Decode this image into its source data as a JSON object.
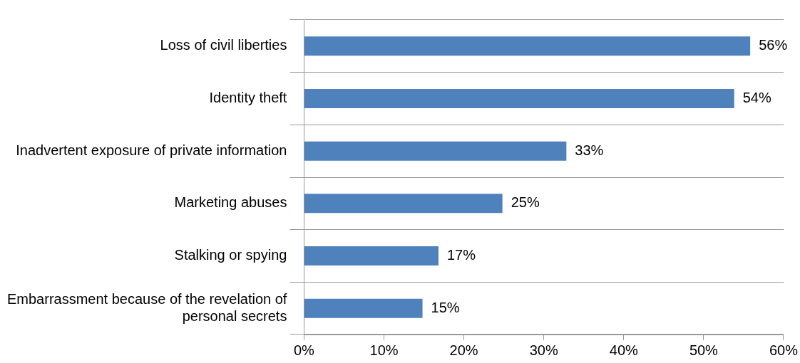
{
  "chart_data": {
    "type": "bar",
    "orientation": "horizontal",
    "categories": [
      "Loss of civil liberties",
      "Identity theft",
      "Inadvertent exposure of private information",
      "Marketing abuses",
      "Stalking or spying",
      "Embarrassment because of the revelation of personal secrets"
    ],
    "values": [
      56,
      54,
      33,
      25,
      17,
      15
    ],
    "value_labels": [
      "56%",
      "54%",
      "33%",
      "25%",
      "17%",
      "15%"
    ],
    "color": "#4f81bd",
    "xlim": [
      0,
      60
    ],
    "xticks": [
      {
        "value": 0,
        "label": "0%"
      },
      {
        "value": 10,
        "label": "10%"
      },
      {
        "value": 20,
        "label": "20%"
      },
      {
        "value": 30,
        "label": "30%"
      },
      {
        "value": 40,
        "label": "40%"
      },
      {
        "value": 50,
        "label": "50%"
      },
      {
        "value": 60,
        "label": "60%"
      }
    ],
    "grid": "y",
    "legend": false
  }
}
